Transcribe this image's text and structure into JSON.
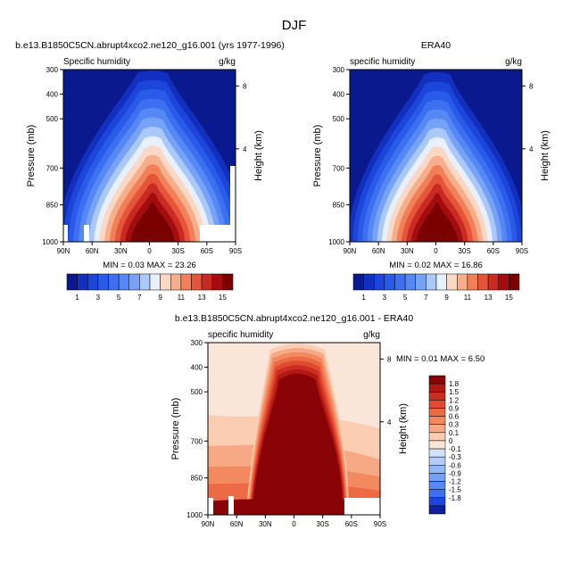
{
  "page_title": "DJF",
  "colors": {
    "pos": [
      "#fae6d8",
      "#fbcdb3",
      "#f9b08f",
      "#f6906c",
      "#f17050",
      "#e8503a",
      "#d73227",
      "#c01d1b",
      "#a40c0f",
      "#8a0306",
      "#800000"
    ],
    "neg": [
      "#0f1f9e",
      "#1530c4",
      "#1d44dd",
      "#2a5aeb",
      "#3d71f3",
      "#5688f7",
      "#73a0f8",
      "#93b7f9",
      "#b3cdfa",
      "#d2e2fb",
      "#eaf2fc"
    ]
  },
  "panel1": {
    "title": "b.e13.B1850C5CN.abrupt4xco2.ne120_g16.001 (yrs 1977-1996)",
    "var_label": "Specific humidity",
    "unit": "g/kg",
    "minmax": "MIN =  0.03  MAX = 23.26",
    "ylabel": "Pressure (mb)",
    "y2label": "Height (km)"
  },
  "panel2": {
    "title": "ERA40",
    "var_label": "specific humidity",
    "unit": "g/kg",
    "minmax": "MIN =  0.02  MAX = 16.86",
    "ylabel": "Pressure (mb)",
    "y2label": "Height (km)"
  },
  "panel3": {
    "title": "b.e13.B1850C5CN.abrupt4xco2.ne120_g16.001 - ERA40",
    "var_label": "specific humidity",
    "unit": "g/kg",
    "minmax": "MIN =  0.01  MAX =  6.50",
    "ylabel": "Pressure (mb)",
    "y2label": "Height (km)"
  },
  "chart_data": [
    {
      "type": "heatmap",
      "title": "b.e13.B1850C5CN.abrupt4xco2.ne120_g16.001 (yrs 1977-1996)",
      "subtitle": "Specific humidity",
      "units": "g/kg",
      "xlabel": "",
      "ylabel": "Pressure (mb)",
      "y2label": "Height (km)",
      "xticks": [
        "90N",
        "60N",
        "30N",
        "0",
        "30S",
        "60S",
        "90S"
      ],
      "yticks": [
        300,
        400,
        500,
        700,
        850,
        1000
      ],
      "y2ticks": [
        8,
        4
      ],
      "levels": [
        1,
        2,
        3,
        4,
        5,
        6,
        7,
        8,
        9,
        10,
        11,
        12,
        13,
        14,
        15
      ],
      "colorbar_labels": [
        "1",
        "3",
        "5",
        "7",
        "9",
        "11",
        "13",
        "15"
      ],
      "min": 0.03,
      "max": 23.26
    },
    {
      "type": "heatmap",
      "title": "ERA40",
      "subtitle": "specific humidity",
      "units": "g/kg",
      "xlabel": "",
      "ylabel": "Pressure (mb)",
      "y2label": "Height (km)",
      "xticks": [
        "90N",
        "60N",
        "30N",
        "0",
        "30S",
        "60S",
        "90S"
      ],
      "yticks": [
        300,
        400,
        500,
        700,
        850,
        1000
      ],
      "y2ticks": [
        8,
        4
      ],
      "levels": [
        1,
        2,
        3,
        4,
        5,
        6,
        7,
        8,
        9,
        10,
        11,
        12,
        13,
        14,
        15
      ],
      "colorbar_labels": [
        "1",
        "3",
        "5",
        "7",
        "9",
        "11",
        "13",
        "15"
      ],
      "min": 0.02,
      "max": 16.86
    },
    {
      "type": "heatmap",
      "title": "b.e13.B1850C5CN.abrupt4xco2.ne120_g16.001 - ERA40",
      "subtitle": "specific humidity",
      "units": "g/kg",
      "xlabel": "",
      "ylabel": "Pressure (mb)",
      "y2label": "Height (km)",
      "xticks": [
        "90N",
        "60N",
        "30N",
        "0",
        "30S",
        "60S",
        "90S"
      ],
      "yticks": [
        300,
        400,
        500,
        700,
        850,
        1000
      ],
      "y2ticks": [
        8,
        4
      ],
      "levels": [
        1.8,
        1.5,
        1.2,
        0.9,
        0.6,
        0.3,
        0.1,
        0,
        -0.1,
        -0.3,
        -0.6,
        -0.9,
        -1.2,
        -1.5,
        -1.8
      ],
      "colorbar_labels": [
        "1.8",
        "1.5",
        "1.2",
        "0.9",
        "0.6",
        "0.3",
        "0.1",
        "0",
        "-0.1",
        "-0.3",
        "-0.6",
        "-0.9",
        "-1.2",
        "-1.5",
        "-1.8"
      ],
      "min": 0.01,
      "max": 6.5
    }
  ]
}
